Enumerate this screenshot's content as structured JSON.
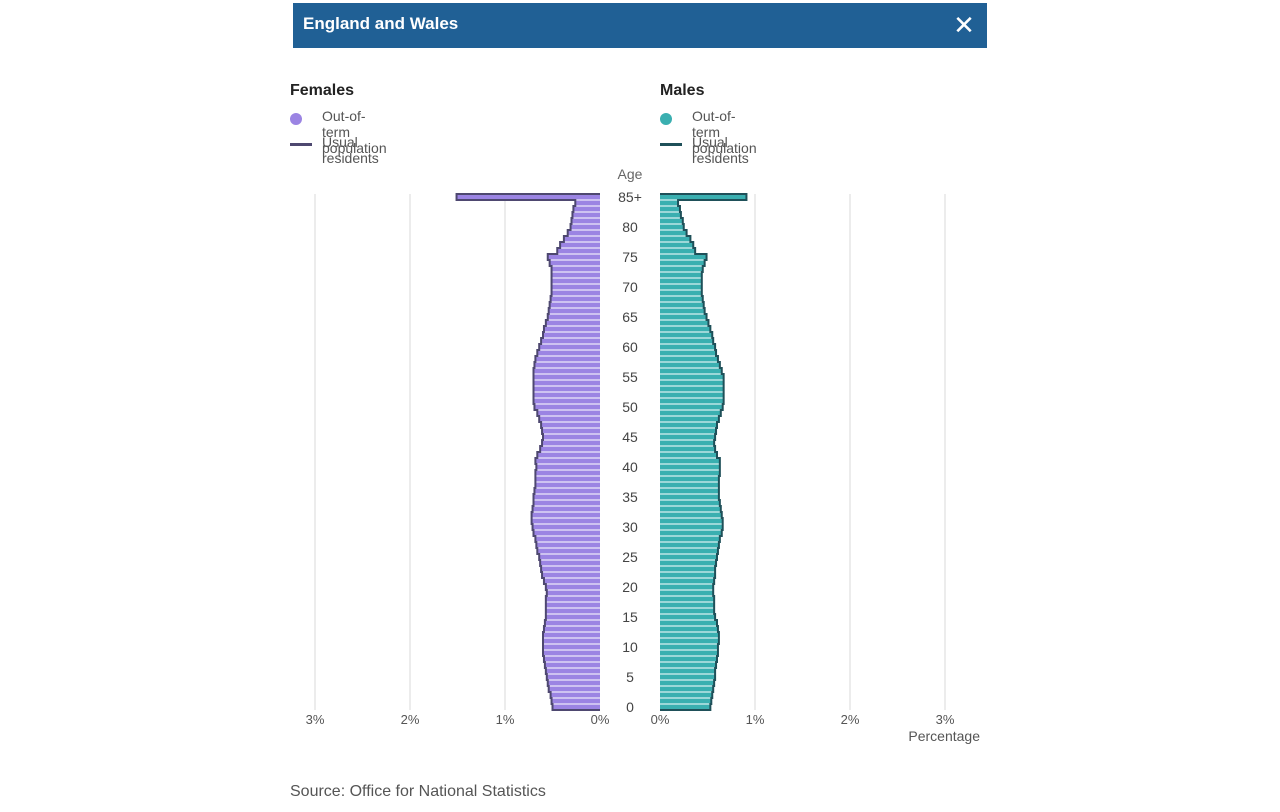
{
  "header": {
    "title": "England and Wales",
    "close_icon": "close-icon"
  },
  "legend": {
    "female": {
      "title": "Females",
      "bar_label": "Out-of-term population",
      "line_label": "Usual residents",
      "bar_color": "#9b84e3",
      "line_color": "#4e4870"
    },
    "male": {
      "title": "Males",
      "bar_label": "Out-of-term population",
      "line_label": "Usual residents",
      "bar_color": "#3aafb0",
      "line_color": "#1f5059"
    }
  },
  "source": "Source: Office for National Statistics",
  "chart_data": {
    "type": "population-pyramid",
    "age_axis_label": "Age",
    "x_axis_label": "Percentage",
    "age_ticks": [
      "0",
      "5",
      "10",
      "15",
      "20",
      "25",
      "30",
      "35",
      "40",
      "45",
      "50",
      "55",
      "60",
      "65",
      "70",
      "75",
      "80",
      "85+"
    ],
    "x_ticks_female": [
      "3%",
      "2%",
      "1%",
      "0%"
    ],
    "x_ticks_male": [
      "0%",
      "1%",
      "2%",
      "3%"
    ],
    "xlim": [
      0,
      3
    ],
    "ages": [
      "0",
      "1",
      "2",
      "3",
      "4",
      "5",
      "6",
      "7",
      "8",
      "9",
      "10",
      "11",
      "12",
      "13",
      "14",
      "15",
      "16",
      "17",
      "18",
      "19",
      "20",
      "21",
      "22",
      "23",
      "24",
      "25",
      "26",
      "27",
      "28",
      "29",
      "30",
      "31",
      "32",
      "33",
      "34",
      "35",
      "36",
      "37",
      "38",
      "39",
      "40",
      "41",
      "42",
      "43",
      "44",
      "45",
      "46",
      "47",
      "48",
      "49",
      "50",
      "51",
      "52",
      "53",
      "54",
      "55",
      "56",
      "57",
      "58",
      "59",
      "60",
      "61",
      "62",
      "63",
      "64",
      "65",
      "66",
      "67",
      "68",
      "69",
      "70",
      "71",
      "72",
      "73",
      "74",
      "75",
      "76",
      "77",
      "78",
      "79",
      "80",
      "81",
      "82",
      "83",
      "84",
      "85+"
    ],
    "series": [
      {
        "name": "Females",
        "values": [
          0.5,
          0.51,
          0.52,
          0.54,
          0.55,
          0.56,
          0.57,
          0.58,
          0.59,
          0.6,
          0.6,
          0.6,
          0.6,
          0.59,
          0.58,
          0.57,
          0.57,
          0.57,
          0.57,
          0.56,
          0.57,
          0.59,
          0.61,
          0.62,
          0.63,
          0.64,
          0.66,
          0.67,
          0.68,
          0.7,
          0.71,
          0.72,
          0.72,
          0.71,
          0.7,
          0.7,
          0.69,
          0.68,
          0.68,
          0.68,
          0.67,
          0.68,
          0.66,
          0.63,
          0.61,
          0.6,
          0.61,
          0.62,
          0.64,
          0.66,
          0.69,
          0.7,
          0.7,
          0.7,
          0.7,
          0.7,
          0.7,
          0.69,
          0.68,
          0.66,
          0.64,
          0.62,
          0.6,
          0.59,
          0.57,
          0.55,
          0.54,
          0.53,
          0.52,
          0.51,
          0.51,
          0.51,
          0.51,
          0.51,
          0.53,
          0.55,
          0.45,
          0.42,
          0.38,
          0.34,
          0.31,
          0.3,
          0.29,
          0.28,
          0.26,
          1.51
        ]
      },
      {
        "name": "Males",
        "values": [
          0.53,
          0.54,
          0.55,
          0.56,
          0.57,
          0.58,
          0.58,
          0.59,
          0.6,
          0.61,
          0.61,
          0.62,
          0.62,
          0.61,
          0.6,
          0.58,
          0.57,
          0.57,
          0.57,
          0.56,
          0.56,
          0.57,
          0.58,
          0.58,
          0.59,
          0.6,
          0.61,
          0.62,
          0.63,
          0.65,
          0.66,
          0.66,
          0.65,
          0.64,
          0.63,
          0.62,
          0.62,
          0.62,
          0.62,
          0.63,
          0.63,
          0.63,
          0.6,
          0.58,
          0.57,
          0.58,
          0.59,
          0.6,
          0.62,
          0.64,
          0.66,
          0.67,
          0.67,
          0.67,
          0.67,
          0.67,
          0.65,
          0.63,
          0.61,
          0.59,
          0.58,
          0.56,
          0.55,
          0.53,
          0.51,
          0.49,
          0.47,
          0.46,
          0.45,
          0.44,
          0.44,
          0.44,
          0.44,
          0.45,
          0.47,
          0.49,
          0.37,
          0.35,
          0.32,
          0.28,
          0.25,
          0.24,
          0.22,
          0.21,
          0.19,
          0.91
        ]
      }
    ]
  }
}
